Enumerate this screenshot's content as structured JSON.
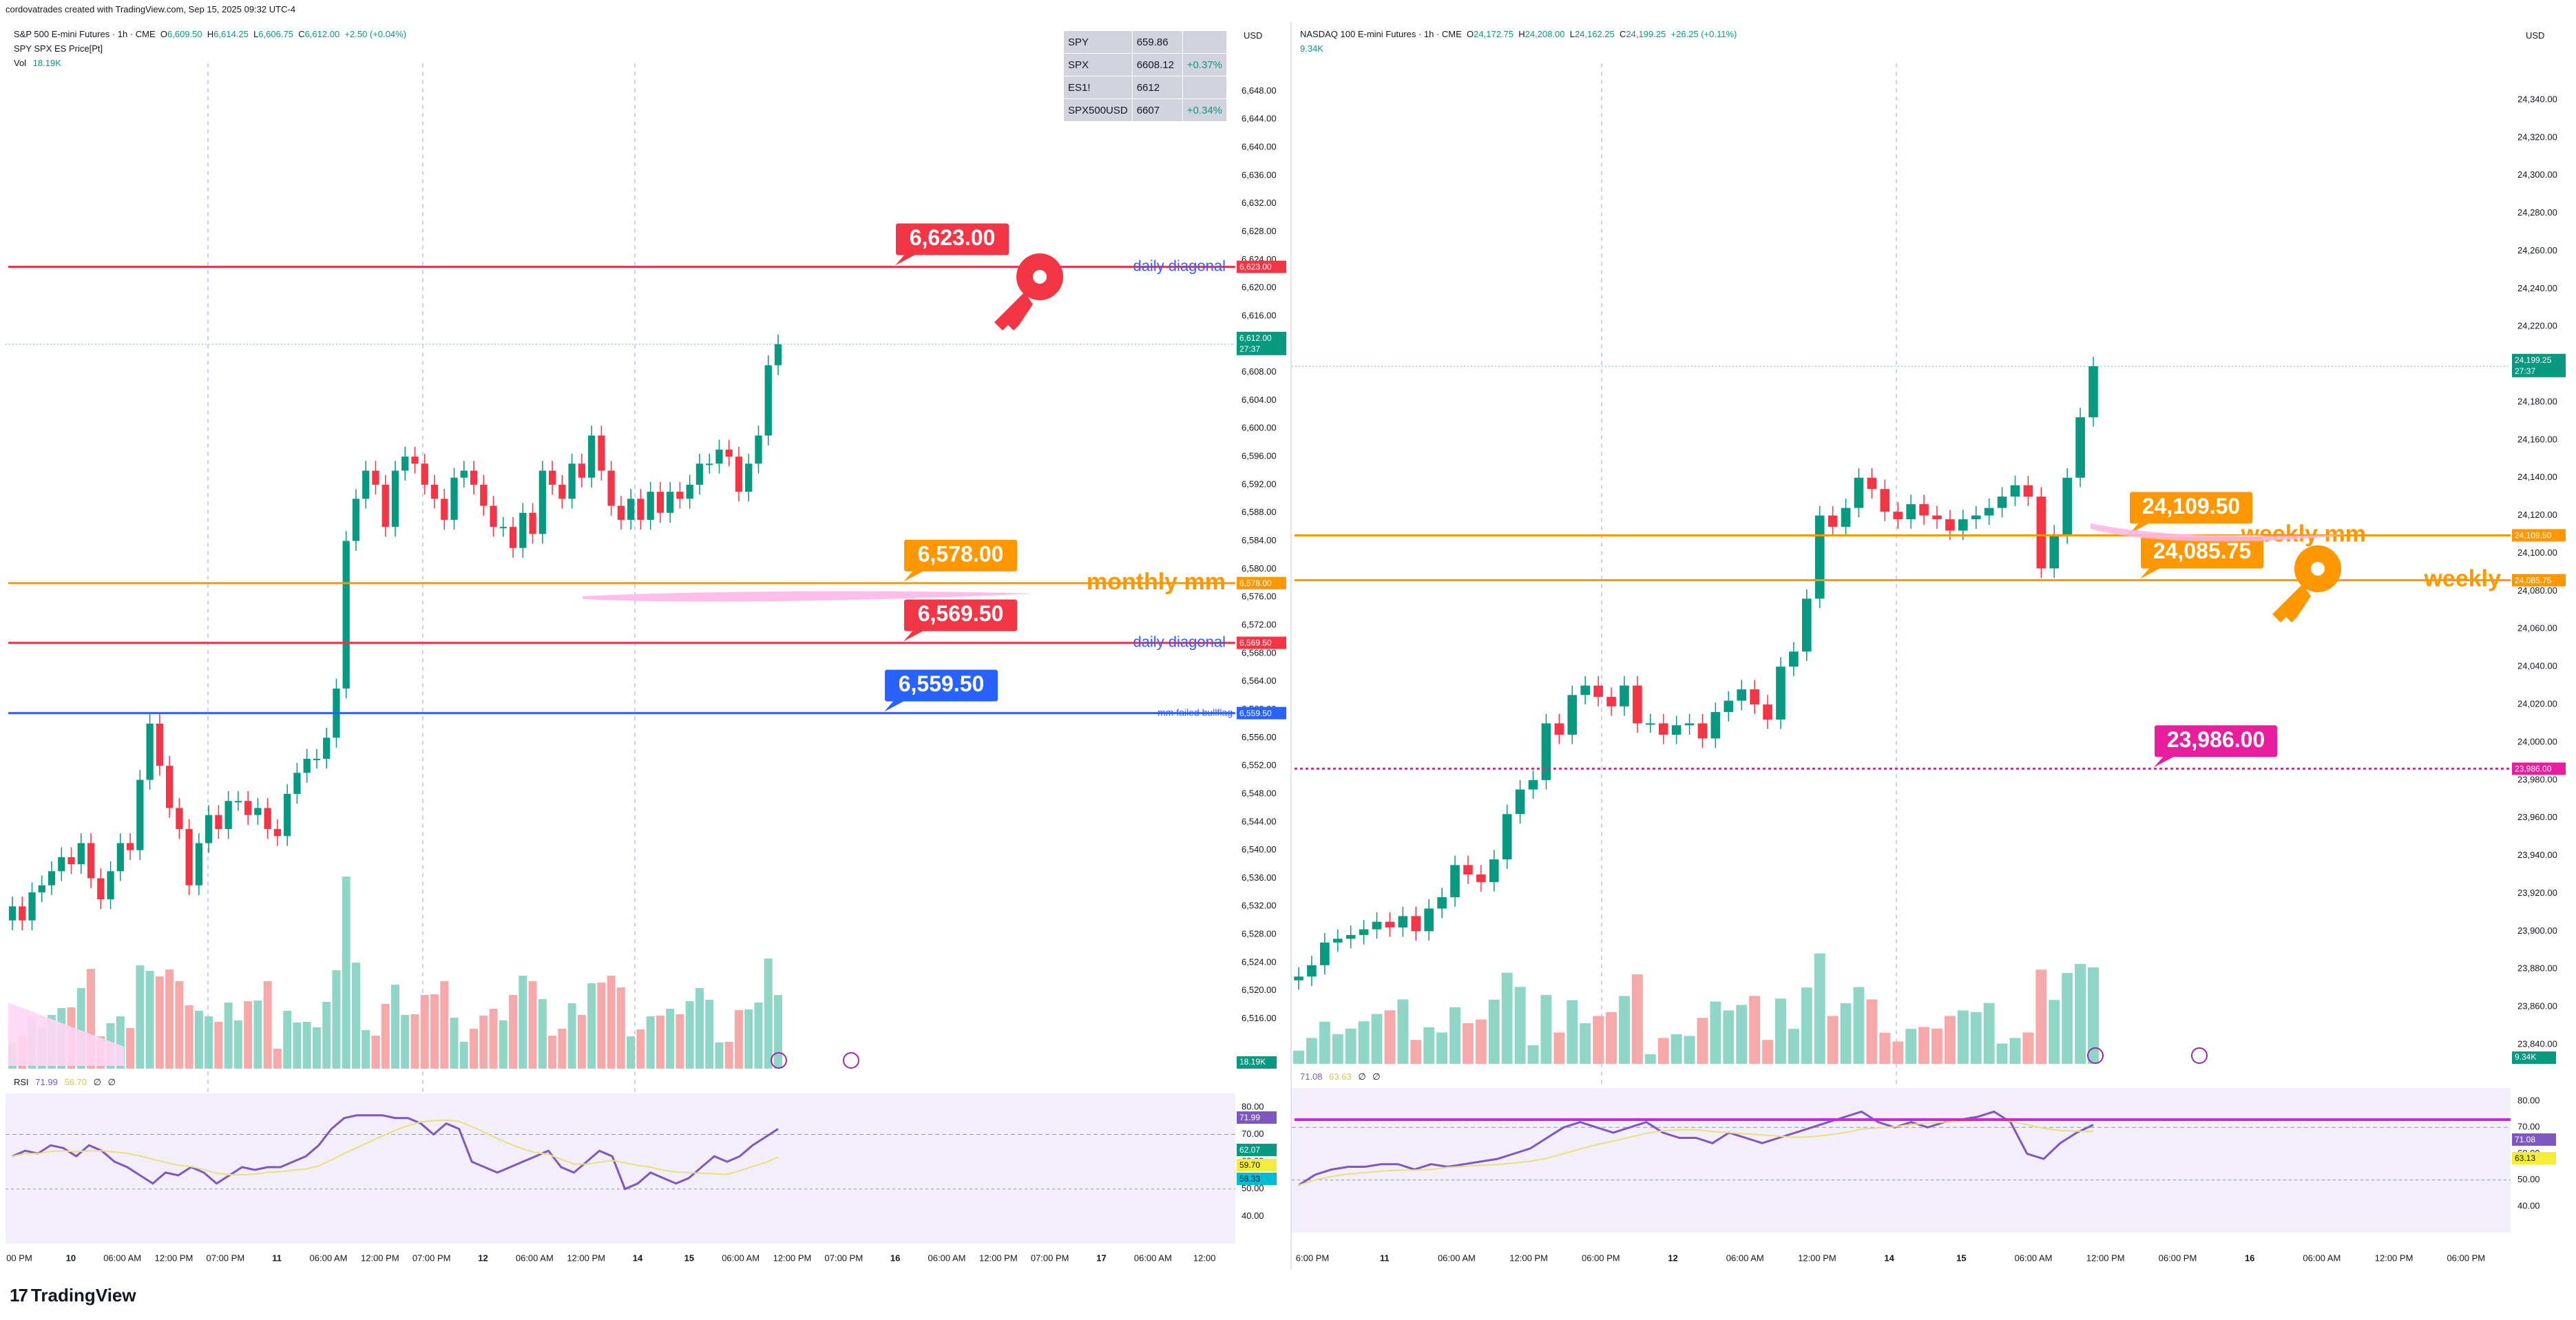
{
  "page": {
    "credit": "cordovatrades created with TradingView.com, Sep 15, 2025 09:32 UTC-4",
    "brand": "TradingView",
    "brand_icon": "tradingview-logo-icon"
  },
  "left_panel": {
    "symbol": "S&P 500 E-mini Futures · 1h · CME",
    "ohlc": {
      "o": "6,609.50",
      "h": "6,614.25",
      "l": "6,606.75",
      "c": "6,612.00",
      "chg": "+2.50 (+0.04%)"
    },
    "line2": "SPY SPX ES Price[Pt]",
    "vol_label": "Vol",
    "vol_value": "18.19K",
    "currency": "USD",
    "price_tag": {
      "value": "6,612.00",
      "timer": "27:37"
    },
    "vol_tag": "18.19K",
    "rsi_label": "RSI",
    "rsi_values": [
      "71.99",
      "56.70",
      "∅",
      "∅"
    ],
    "rsi_tags": [
      "71.99",
      "62.07",
      "59.70",
      "58.33"
    ],
    "watchlist": [
      {
        "sym": "SPY",
        "price": "659.86",
        "chg": ""
      },
      {
        "sym": "SPX",
        "price": "6608.12",
        "chg": "+0.37%"
      },
      {
        "sym": "ES1!",
        "price": "6612",
        "chg": ""
      },
      {
        "sym": "SPX500USD",
        "price": "6607",
        "chg": "+0.34%"
      }
    ]
  },
  "right_panel": {
    "symbol": "NASDAQ 100 E-mini Futures · 1h · CME",
    "ohlc": {
      "o": "24,172.75",
      "h": "24,208.00",
      "l": "24,162.25",
      "c": "24,199.25",
      "chg": "+26.25 (+0.11%)"
    },
    "vol_value": "9.34K",
    "currency": "USD",
    "price_tag": {
      "value": "24,199.25",
      "timer": "27:37"
    },
    "vol_tag": "9.34K",
    "rsi_values": [
      "71.08",
      "63.63",
      "∅",
      "∅"
    ],
    "rsi_tags": [
      "71.08",
      "63.13"
    ]
  },
  "chart_data": [
    {
      "type": "candlestick",
      "title": "S&P 500 E-mini Futures · 1h · CME",
      "ylim": [
        6514,
        6650
      ],
      "y_ticks": [
        "6,648.00",
        "6,644.00",
        "6,640.00",
        "6,636.00",
        "6,632.00",
        "6,628.00",
        "6,624.00",
        "6,620.00",
        "6,616.00",
        "6,612.00",
        "6,608.00",
        "6,604.00",
        "6,600.00",
        "6,596.00",
        "6,592.00",
        "6,588.00",
        "6,584.00",
        "6,580.00",
        "6,576.00",
        "6,572.00",
        "6,568.00",
        "6,564.00",
        "6,560.00",
        "6,556.00",
        "6,552.00",
        "6,548.00",
        "6,544.00",
        "6,540.00",
        "6,536.00",
        "6,532.00",
        "6,528.00",
        "6,524.00",
        "6,520.00",
        "6,516.00"
      ],
      "x_ticks": [
        "00 PM",
        "10",
        "06:00 AM",
        "12:00 PM",
        "07:00 PM",
        "11",
        "06:00 AM",
        "12:00 PM",
        "07:00 PM",
        "12",
        "06:00 AM",
        "12:00 PM",
        "14",
        "15",
        "06:00 AM",
        "12:00 PM",
        "07:00 PM",
        "16",
        "06:00 AM",
        "12:00 PM",
        "07:00 PM",
        "17",
        "06:00 AM",
        "12:00"
      ],
      "levels": [
        {
          "price": 6623.0,
          "label": "6,623.00",
          "tag": "6,623.00",
          "note": "daily diagonal",
          "color": "#f23645"
        },
        {
          "price": 6578.0,
          "label": "6,578.00",
          "tag": "6,578.00",
          "note": "monthly mm",
          "color": "#ff9800"
        },
        {
          "price": 6569.5,
          "label": "6,569.50",
          "tag": "6,569.50",
          "note": "daily diagonal",
          "color": "#f23645"
        },
        {
          "price": 6559.5,
          "label": "6,559.50",
          "tag": "6,559.50",
          "note": "mm failed bullflag",
          "color": "#2962ff"
        }
      ],
      "closes": [
        6532,
        6530,
        6534,
        6535,
        6537,
        6539,
        6538,
        6541,
        6536,
        6533,
        6537,
        6541,
        6540,
        6550,
        6558,
        6552,
        6546,
        6543,
        6535,
        6541,
        6545,
        6543,
        6547,
        6547,
        6545,
        6546,
        6543,
        6542,
        6548,
        6551,
        6553,
        6553,
        6556,
        6563,
        6584,
        6590,
        6594,
        6592,
        6586,
        6594,
        6596,
        6595,
        6592,
        6590,
        6587,
        6593,
        6594,
        6592,
        6589,
        6586,
        6586,
        6583,
        6588,
        6585,
        6594,
        6592,
        6590,
        6595,
        6593,
        6599,
        6594,
        6589,
        6587,
        6590,
        6587,
        6591,
        6588,
        6591,
        6590,
        6592,
        6595,
        6595,
        6597,
        6596,
        6591,
        6595,
        6599,
        6609,
        6612
      ],
      "rsi": [
        62,
        64,
        63,
        66,
        65,
        62,
        66,
        64,
        60,
        58,
        55,
        52,
        56,
        55,
        58,
        56,
        52,
        55,
        58,
        57,
        58,
        58,
        60,
        62,
        66,
        72,
        76,
        77,
        77,
        77,
        76,
        76,
        74,
        70,
        74,
        72,
        60,
        58,
        56,
        58,
        60,
        62,
        64,
        58,
        56,
        60,
        64,
        62,
        50,
        52,
        56,
        54,
        52,
        54,
        58,
        62,
        60,
        62,
        66,
        69,
        72
      ]
    },
    {
      "type": "candlestick",
      "title": "NASDAQ 100 E-mini Futures · 1h · CME",
      "ylim": [
        23836,
        24352
      ],
      "y_ticks": [
        "24,340.00",
        "24,320.00",
        "24,300.00",
        "24,280.00",
        "24,260.00",
        "24,240.00",
        "24,220.00",
        "24,200.00",
        "24,180.00",
        "24,160.00",
        "24,140.00",
        "24,120.00",
        "24,100.00",
        "24,080.00",
        "24,060.00",
        "24,040.00",
        "24,020.00",
        "24,000.00",
        "23,980.00",
        "23,960.00",
        "23,940.00",
        "23,920.00",
        "23,900.00",
        "23,880.00",
        "23,860.00",
        "23,840.00"
      ],
      "x_ticks": [
        "6:00 PM",
        "11",
        "06:00 AM",
        "12:00 PM",
        "06:00 PM",
        "12",
        "06:00 AM",
        "12:00 PM",
        "14",
        "15",
        "06:00 AM",
        "12:00 PM",
        "06:00 PM",
        "16",
        "06:00 AM",
        "12:00 PM",
        "06:00 PM"
      ],
      "levels": [
        {
          "price": 24109.5,
          "label": "24,109.50",
          "tag": "24,109.50",
          "note": "weekly mm",
          "color": "#ff9800"
        },
        {
          "price": 24085.75,
          "label": "24,085.75",
          "tag": "24,085.75",
          "note": "weekly",
          "color": "#ff9800"
        },
        {
          "price": 23986.0,
          "label": "23,986.00",
          "tag": "23,986.00",
          "note": "",
          "color": "#e91e9e"
        }
      ],
      "closes": [
        23876,
        23882,
        23894,
        23896,
        23898,
        23901,
        23905,
        23902,
        23908,
        23900,
        23912,
        23918,
        23935,
        23930,
        23926,
        23938,
        23962,
        23975,
        23980,
        24010,
        24004,
        24025,
        24030,
        24024,
        24019,
        24030,
        24010,
        24010,
        24004,
        24009,
        24010,
        24002,
        24016,
        24022,
        24028,
        24020,
        24012,
        24040,
        24048,
        24076,
        24120,
        24114,
        24124,
        24140,
        24134,
        24122,
        24118,
        24126,
        24120,
        24118,
        24112,
        24118,
        24120,
        24124,
        24130,
        24136,
        24130,
        24092,
        24110,
        24140,
        24172,
        24199
      ],
      "rsi": [
        48,
        52,
        54,
        55,
        55,
        56,
        56,
        54,
        56,
        55,
        56,
        57,
        58,
        60,
        62,
        66,
        70,
        72,
        70,
        68,
        70,
        72,
        68,
        66,
        66,
        64,
        68,
        66,
        64,
        66,
        68,
        70,
        72,
        74,
        76,
        72,
        70,
        72,
        70,
        72,
        73,
        74,
        76,
        72,
        60,
        58,
        64,
        68,
        71
      ]
    }
  ]
}
